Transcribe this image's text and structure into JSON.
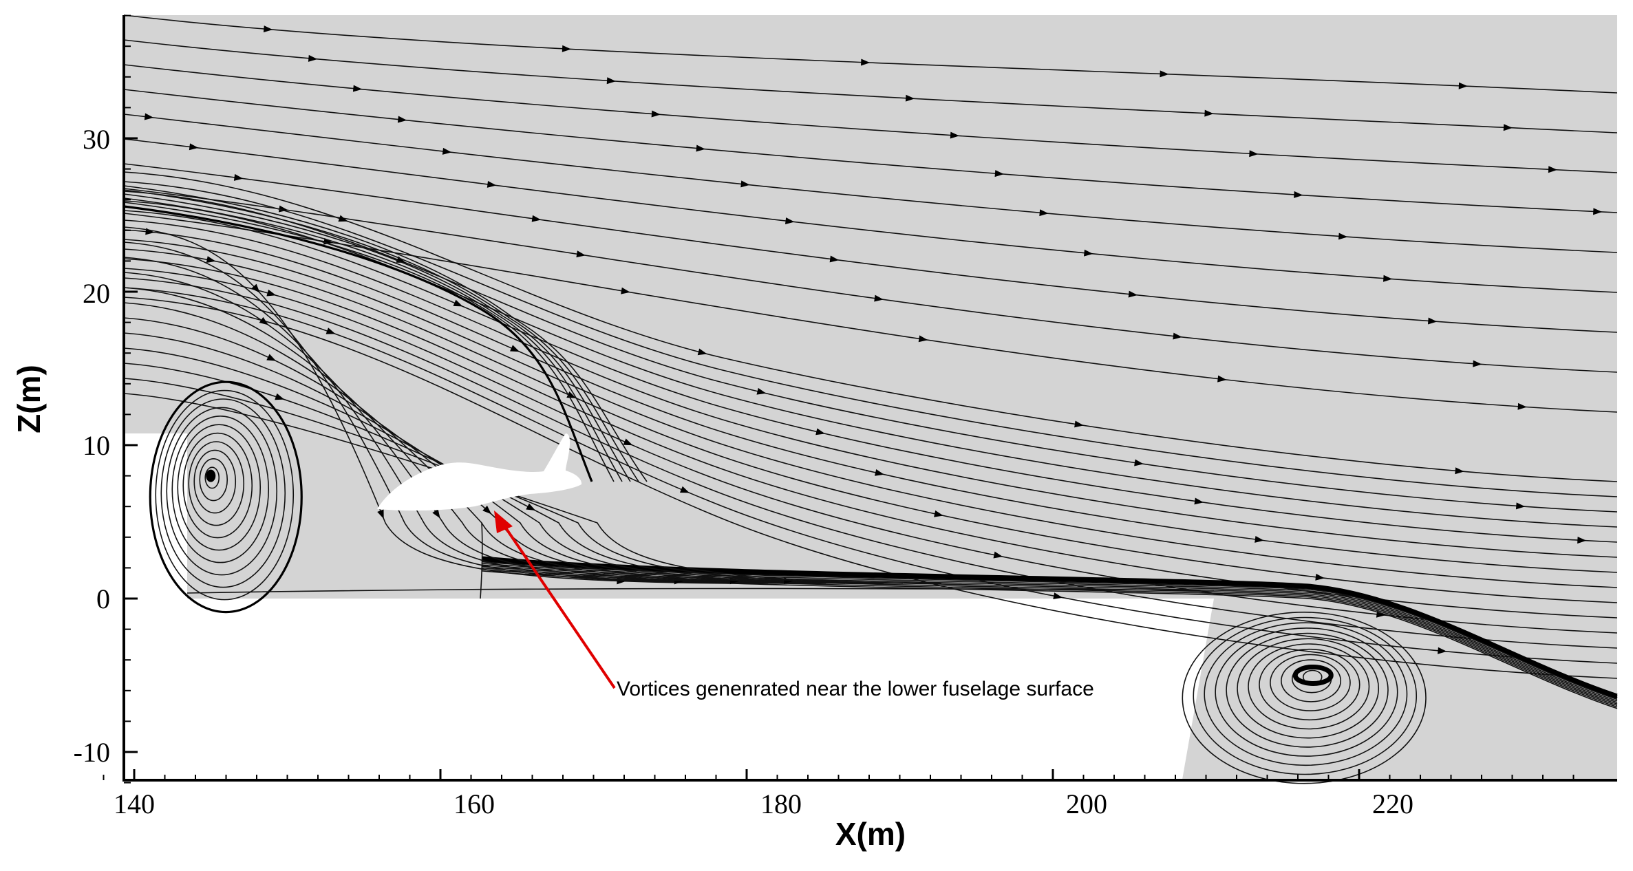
{
  "figure": {
    "x_axis": {
      "title": "X(m)",
      "range": [
        137,
        234
      ],
      "ticks": [
        140,
        160,
        180,
        200,
        220
      ],
      "tick_labels": [
        "140",
        "160",
        "180",
        "200",
        "220"
      ]
    },
    "y_axis": {
      "title": "Z(m)",
      "range": [
        -12,
        38
      ],
      "ticks": [
        30,
        20,
        10,
        0,
        -10
      ],
      "tick_labels": [
        "30",
        "20",
        "10",
        "0",
        "-10"
      ]
    },
    "annotation": {
      "text": "Vortices genenrated near the lower fuselage surface",
      "arrow_color": "#e00000"
    },
    "colors": {
      "flow_region": "#d4d4d4",
      "streamline": "#111111",
      "body": "#ffffff"
    },
    "features": {
      "upstream_vortex_center": [
        145,
        8
      ],
      "downstream_vortex_center": [
        217,
        -5
      ],
      "ground_step_x": 209
    }
  }
}
